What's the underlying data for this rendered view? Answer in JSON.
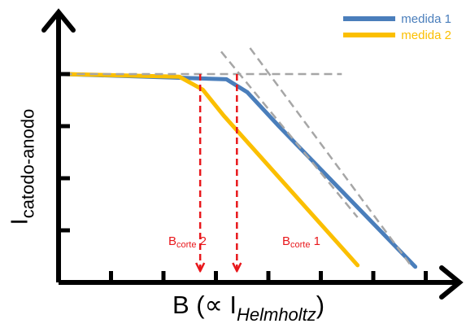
{
  "chart_data": {
    "type": "line",
    "title": "",
    "xlabel": {
      "main": "B (∝ I",
      "sub": "Helmholtz",
      "close": ")"
    },
    "ylabel": {
      "main": "I",
      "sub": "catodo-anodo"
    },
    "xlim": [
      0,
      8
    ],
    "ylim": [
      0,
      4
    ],
    "x_ticks": [
      1,
      2,
      3,
      4,
      5,
      6,
      7
    ],
    "y_ticks": [
      1,
      2,
      3,
      4
    ],
    "grid": false,
    "legend_position": "top-right",
    "series": [
      {
        "name": "medida 1",
        "color": "#4a7ebb",
        "points": [
          [
            0.1,
            4.0
          ],
          [
            3.2,
            3.9
          ],
          [
            3.6,
            3.65
          ],
          [
            4.2,
            3.0
          ],
          [
            6.8,
            0.3
          ]
        ]
      },
      {
        "name": "medida 2",
        "color": "#fbbf00",
        "points": [
          [
            0.1,
            4.0
          ],
          [
            2.3,
            3.95
          ],
          [
            2.75,
            3.7
          ],
          [
            3.15,
            3.2
          ],
          [
            5.7,
            0.33
          ]
        ]
      }
    ],
    "asymptotes": {
      "color": "#a6a6a6",
      "plateau": {
        "y": 4.0,
        "x": [
          0.1,
          5.4
        ]
      },
      "slopes": [
        {
          "points": [
            [
              3.1,
              4.43
            ],
            [
              5.7,
              1.25
            ]
          ]
        },
        {
          "points": [
            [
              3.65,
              4.5
            ],
            [
              6.75,
              0.28
            ]
          ]
        }
      ]
    },
    "cutoffs": {
      "color": "#e8171b",
      "items": [
        {
          "x": 3.4,
          "label": "B",
          "label_sub": "corte",
          "label_suffix": " 1"
        },
        {
          "x": 2.7,
          "label": "B",
          "label_sub": "corte",
          "label_suffix": " 2"
        }
      ]
    }
  }
}
